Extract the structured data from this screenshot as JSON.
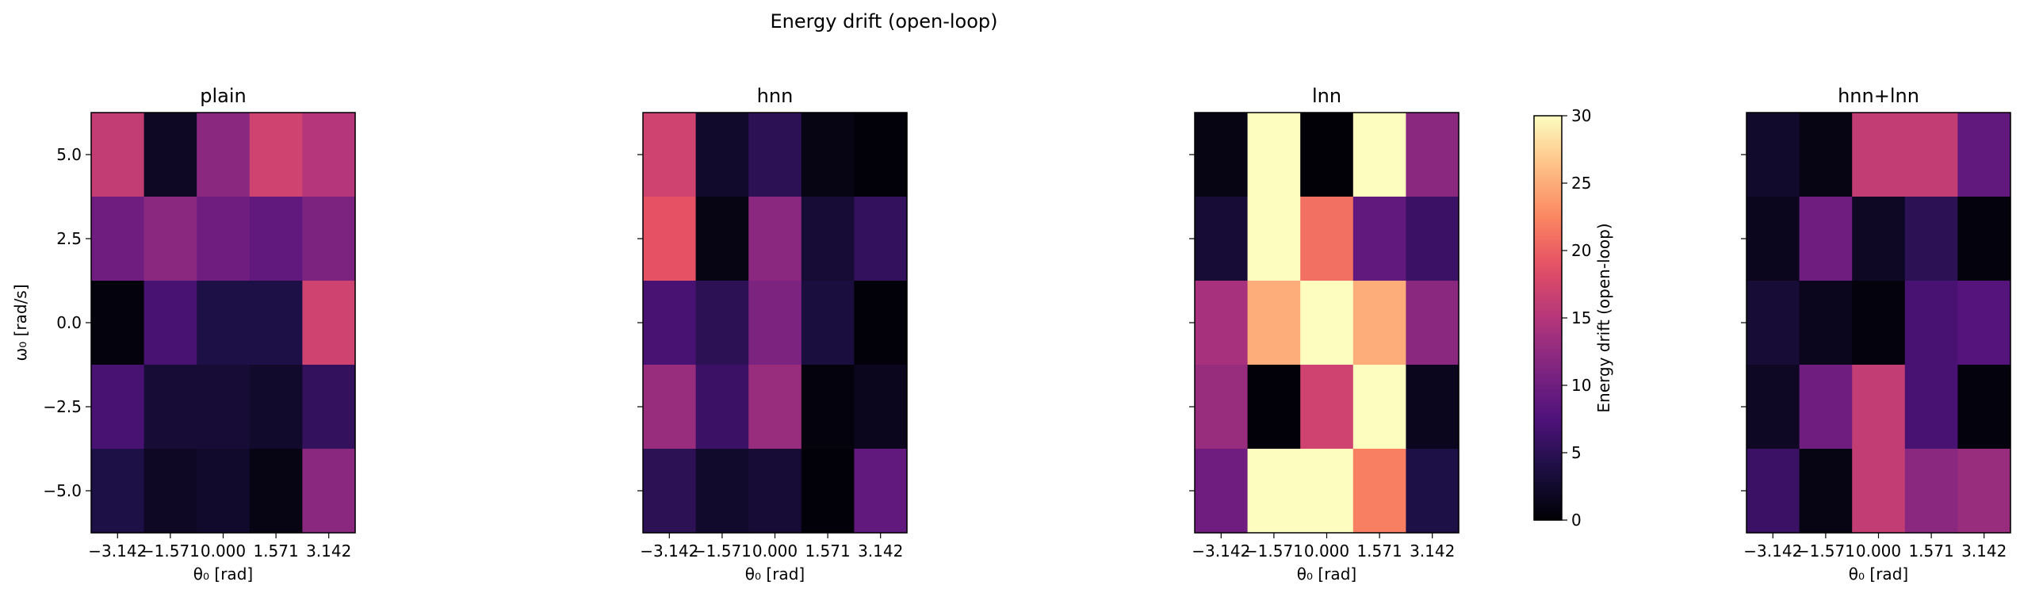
{
  "suptitle": "Energy drift (open-loop)",
  "chart_data": {
    "type": "heatmap",
    "colormap": "magma",
    "xlabel": "θ₀ [rad]",
    "ylabel": "ω₀ [rad/s]",
    "x_ticks": [
      "−3.142",
      "−1.571",
      "0.000",
      "1.571",
      "3.142"
    ],
    "y_ticks": [
      "5.0",
      "2.5",
      "0.0",
      "−2.5",
      "−5.0"
    ],
    "ylabel_panels": [
      "plain"
    ],
    "colorbar": {
      "label": "Energy drift (open-loop)",
      "vmin": 0,
      "vmax": 30,
      "ticks": [
        "0",
        "5",
        "10",
        "15",
        "20",
        "25",
        "30"
      ]
    },
    "panels": [
      {
        "title": "plain",
        "rows_top_to_bottom": [
          [
            16,
            2,
            12,
            17,
            15
          ],
          [
            10,
            12,
            10,
            9,
            11
          ],
          [
            0.5,
            7,
            4,
            4,
            17
          ],
          [
            7,
            3,
            3,
            2.5,
            5.5
          ],
          [
            4,
            2,
            2.5,
            1,
            12
          ]
        ]
      },
      {
        "title": "hnn",
        "rows_top_to_bottom": [
          [
            17,
            2.5,
            5,
            1,
            0.3
          ],
          [
            19,
            1,
            12,
            3,
            5.5
          ],
          [
            7,
            5,
            11,
            3.5,
            0.3
          ],
          [
            13,
            6,
            13,
            0.5,
            1.5
          ],
          [
            5,
            2.5,
            3,
            0.3,
            9
          ]
        ]
      },
      {
        "title": "lnn",
        "rows_top_to_bottom": [
          [
            1,
            30,
            0.2,
            30,
            12
          ],
          [
            3,
            30,
            21,
            9,
            6
          ],
          [
            14,
            25,
            30,
            25,
            12
          ],
          [
            13,
            0.3,
            17,
            30,
            1.5
          ],
          [
            10,
            30,
            30,
            22,
            4
          ]
        ]
      },
      {
        "title": "hnn+lnn",
        "rows_top_to_bottom": [
          [
            2.5,
            1,
            16,
            16,
            9
          ],
          [
            1.5,
            10,
            2,
            5,
            0.5
          ],
          [
            3,
            1.5,
            0.5,
            7,
            8
          ],
          [
            2,
            10,
            16,
            7,
            0.5
          ],
          [
            6,
            1,
            16,
            12,
            13
          ]
        ]
      }
    ]
  }
}
